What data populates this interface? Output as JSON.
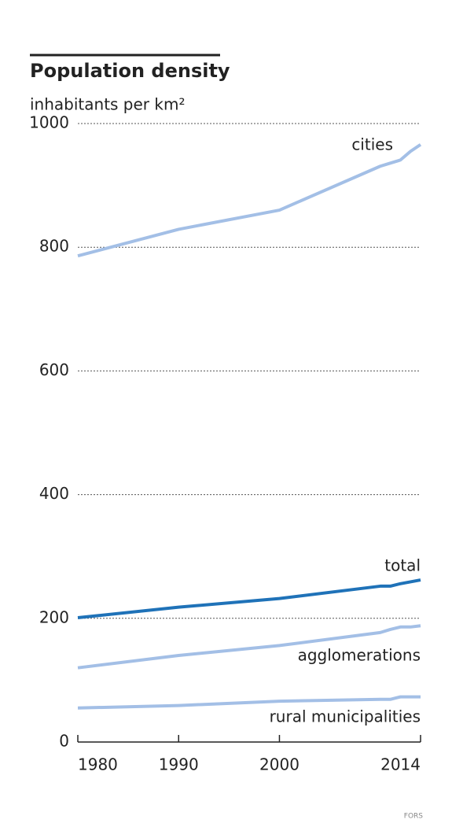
{
  "chart_data": {
    "type": "line",
    "title": "Population density",
    "y_label": "inhabitants per km²",
    "source": "FORS",
    "x": [
      1980,
      1990,
      2000,
      2010,
      2011,
      2012,
      2013,
      2014
    ],
    "series": [
      {
        "name": "cities",
        "color": "#a3bfe6",
        "values": [
          786,
          829,
          860,
          931,
          936,
          941,
          955,
          966
        ]
      },
      {
        "name": "total",
        "color": "#1f72b8",
        "values": [
          201,
          218,
          232,
          252,
          252,
          256,
          259,
          262
        ]
      },
      {
        "name": "agglomerations",
        "color": "#a3bfe6",
        "values": [
          120,
          140,
          156,
          177,
          182,
          186,
          186,
          188
        ]
      },
      {
        "name": "rural municipalities",
        "color": "#a3bfe6",
        "values": [
          55,
          59,
          66,
          69,
          69,
          73,
          73,
          73
        ]
      }
    ],
    "xlim": [
      1980,
      2014
    ],
    "xticks": [
      1980,
      1990,
      2000,
      2014
    ],
    "ylim": [
      0,
      1000
    ],
    "yticks": [
      0,
      200,
      400,
      600,
      800,
      1000
    ],
    "grid": true
  }
}
